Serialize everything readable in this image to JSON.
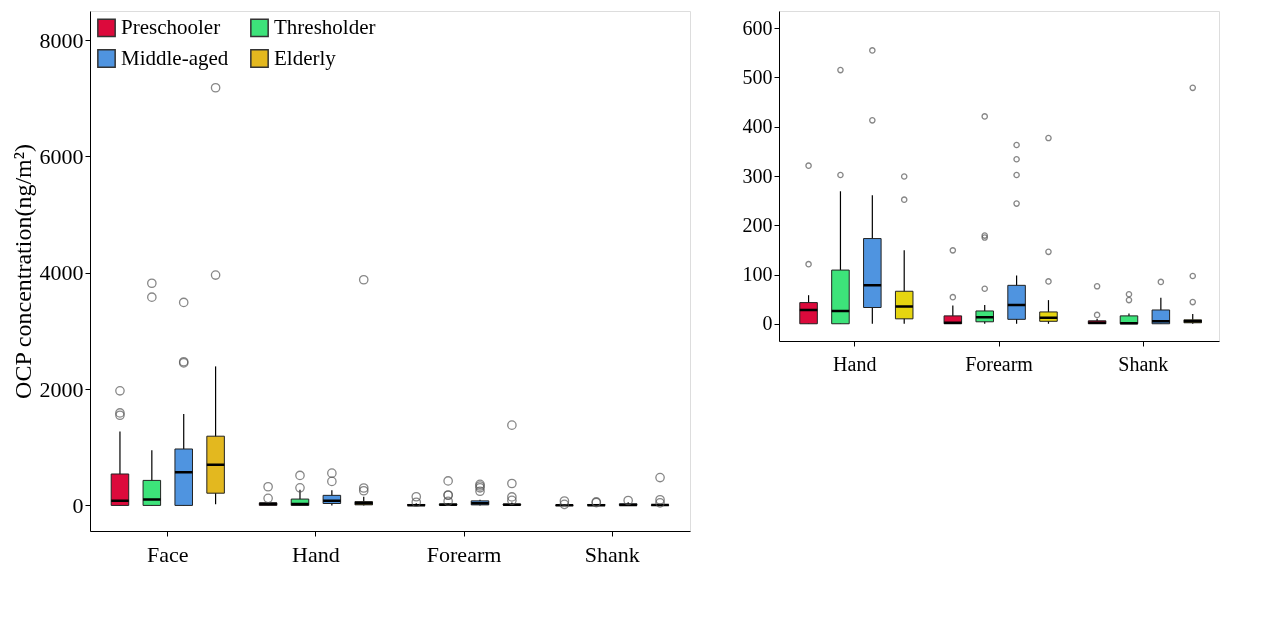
{
  "chart_data": [
    {
      "type": "box",
      "ylabel": "OCP concentration(ng/m²)",
      "categories": [
        "Face",
        "Hand",
        "Forearm",
        "Shank"
      ],
      "ylim": [
        -440,
        8500
      ],
      "yticks": [
        0,
        2000,
        4000,
        6000,
        8000
      ],
      "legend": "top left",
      "grid": false,
      "series": [
        {
          "name": "Preschooler",
          "color": "#dc0a3c",
          "boxes": [
            {
              "low": 0,
              "q1": 0,
              "median": 80,
              "q3": 540,
              "high": 1270,
              "outliers": [
                1550,
                1590,
                1970
              ]
            },
            {
              "low": 0,
              "q1": 0,
              "median": 28,
              "q3": 43,
              "high": 58,
              "outliers": [
                121,
                321
              ]
            },
            {
              "low": 0,
              "q1": 0,
              "median": 2,
              "q3": 16,
              "high": 37,
              "outliers": [
                54,
                149
              ]
            },
            {
              "low": 0,
              "q1": 0,
              "median": 2,
              "q3": 6,
              "high": 10,
              "outliers": [
                18,
                76
              ]
            }
          ]
        },
        {
          "name": "Thresholder",
          "color": "#3de37a",
          "boxes": [
            {
              "low": 0,
              "q1": 0,
              "median": 100,
              "q3": 430,
              "high": 950,
              "outliers": [
                3580,
                3820
              ]
            },
            {
              "low": 0,
              "q1": 0,
              "median": 26,
              "q3": 109,
              "high": 269,
              "outliers": [
                302,
                515
              ]
            },
            {
              "low": 0,
              "q1": 4,
              "median": 13,
              "q3": 26,
              "high": 38,
              "outliers": [
                71,
                175,
                179,
                421
              ]
            },
            {
              "low": 0,
              "q1": 0,
              "median": 1,
              "q3": 16,
              "high": 21,
              "outliers": [
                48,
                60
              ]
            }
          ]
        },
        {
          "name": "Middle-aged",
          "color": "#4f94e0",
          "boxes": [
            {
              "low": 0,
              "q1": 0,
              "median": 570,
              "q3": 970,
              "high": 1570,
              "outliers": [
                2450,
                2470,
                3490
              ]
            },
            {
              "low": 0,
              "q1": 33,
              "median": 78,
              "q3": 173,
              "high": 261,
              "outliers": [
                413,
                555
              ]
            },
            {
              "low": 0,
              "q1": 9,
              "median": 38,
              "q3": 78,
              "high": 98,
              "outliers": [
                244,
                302,
                334,
                363
              ]
            },
            {
              "low": 0,
              "q1": 0,
              "median": 5,
              "q3": 28,
              "high": 53,
              "outliers": [
                85
              ]
            }
          ]
        },
        {
          "name": "Elderly",
          "color": "#e3b81f",
          "boxes": [
            {
              "low": 20,
              "q1": 210,
              "median": 700,
              "q3": 1190,
              "high": 2390,
              "outliers": [
                3960,
                7180
              ]
            },
            {
              "low": 0,
              "q1": 10,
              "median": 35,
              "q3": 66,
              "high": 149,
              "outliers": [
                252,
                299,
                3880
              ]
            },
            {
              "low": 0,
              "q1": 5,
              "median": 12,
              "q3": 24,
              "high": 48,
              "outliers": [
                86,
                146,
                377,
                1380
              ]
            },
            {
              "low": 0,
              "q1": 2,
              "median": 5,
              "q3": 8,
              "high": 20,
              "outliers": [
                44,
                97,
                479
              ]
            }
          ]
        }
      ]
    },
    {
      "type": "box",
      "categories": [
        "Hand",
        "Forearm",
        "Shank"
      ],
      "ylim": [
        -35,
        635
      ],
      "yticks": [
        0,
        100,
        200,
        300,
        400,
        500,
        600
      ],
      "grid": false,
      "series": [
        {
          "color": "#dc0a3c",
          "boxes": [
            {
              "low": 0,
              "q1": 0,
              "median": 28,
              "q3": 43,
              "high": 58,
              "outliers": [
                121,
                321
              ]
            },
            {
              "low": 0,
              "q1": 0,
              "median": 2,
              "q3": 16,
              "high": 37,
              "outliers": [
                54,
                149
              ]
            },
            {
              "low": 0,
              "q1": 0,
              "median": 2,
              "q3": 6,
              "high": 10,
              "outliers": [
                18,
                76
              ]
            }
          ]
        },
        {
          "color": "#3de37a",
          "boxes": [
            {
              "low": 0,
              "q1": 0,
              "median": 26,
              "q3": 109,
              "high": 269,
              "outliers": [
                302,
                515
              ]
            },
            {
              "low": 0,
              "q1": 4,
              "median": 13,
              "q3": 26,
              "high": 38,
              "outliers": [
                71,
                175,
                179,
                421
              ]
            },
            {
              "low": 0,
              "q1": 0,
              "median": 1,
              "q3": 16,
              "high": 21,
              "outliers": [
                48,
                60
              ]
            }
          ]
        },
        {
          "color": "#4f94e0",
          "boxes": [
            {
              "low": 0,
              "q1": 33,
              "median": 78,
              "q3": 173,
              "high": 261,
              "outliers": [
                413,
                555
              ]
            },
            {
              "low": 0,
              "q1": 9,
              "median": 38,
              "q3": 78,
              "high": 98,
              "outliers": [
                244,
                302,
                334,
                363
              ]
            },
            {
              "low": 0,
              "q1": 0,
              "median": 5,
              "q3": 28,
              "high": 53,
              "outliers": [
                85
              ]
            }
          ]
        },
        {
          "color": "#e6d510",
          "boxes": [
            {
              "low": 0,
              "q1": 10,
              "median": 35,
              "q3": 66,
              "high": 149,
              "outliers": [
                252,
                299
              ]
            },
            {
              "low": 0,
              "q1": 5,
              "median": 12,
              "q3": 24,
              "high": 48,
              "outliers": [
                86,
                146,
                377
              ]
            },
            {
              "low": 0,
              "q1": 2,
              "median": 5,
              "q3": 8,
              "high": 20,
              "outliers": [
                44,
                97,
                479
              ]
            }
          ]
        }
      ]
    }
  ]
}
